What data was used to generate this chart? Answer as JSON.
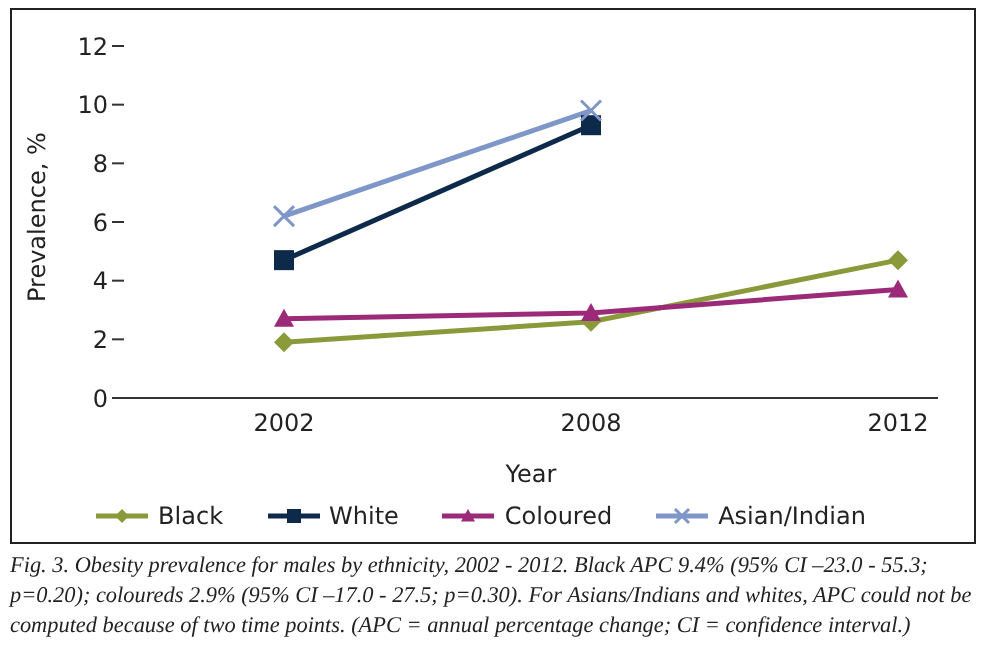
{
  "chart_data": {
    "type": "line",
    "categories": [
      "2002",
      "2008",
      "2012"
    ],
    "series": [
      {
        "name": "Black",
        "color": "#8a9a3b",
        "marker": "diamond",
        "values": [
          1.9,
          2.6,
          4.7
        ]
      },
      {
        "name": "White",
        "color": "#0d2a4a",
        "marker": "square",
        "values": [
          4.7,
          9.3,
          null
        ]
      },
      {
        "name": "Coloured",
        "color": "#9b2a78",
        "marker": "triangle",
        "values": [
          2.7,
          2.9,
          3.7
        ]
      },
      {
        "name": "Asian/Indian",
        "color": "#7f97c8",
        "marker": "cross",
        "values": [
          6.2,
          9.8,
          null
        ]
      }
    ],
    "xlabel": "Year",
    "ylabel": "Prevalence, %",
    "ylim": [
      0,
      12
    ],
    "yticks": [
      0,
      2,
      4,
      6,
      8,
      10,
      12
    ],
    "grid": false,
    "legend": "bottom",
    "annotations": [
      "Fig. 3. Obesity prevalence for males by ethnicity, 2002 - 2012. Black APC 9.4% (95% CI –23.0 - 55.3; p=0.20); coloureds 2.9% (95% CI –17.0 - 27.5; p=0.30). For Asians/Indians and whites, APC could not be computed because of two time points. (APC = annual percentage change; CI = confidence interval.)"
    ]
  }
}
